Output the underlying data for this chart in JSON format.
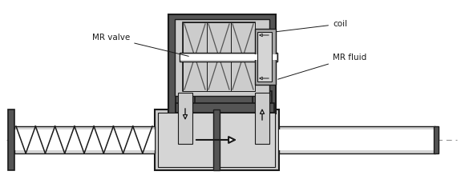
{
  "bg_color": "#ffffff",
  "c_black": "#1a1a1a",
  "c_dark": "#3a3a3a",
  "c_darkgray": "#555555",
  "c_gray": "#888888",
  "c_midgray": "#aaaaaa",
  "c_lightgray": "#cccccc",
  "c_silver": "#d5d5d5",
  "c_white": "#ffffff",
  "c_nearwhite": "#f0f0f0",
  "label_mr_valve": "MR valve",
  "label_coil": "coil",
  "label_mr_fluid": "MR fluid",
  "fig_width": 5.8,
  "fig_height": 2.39,
  "dpi": 100
}
